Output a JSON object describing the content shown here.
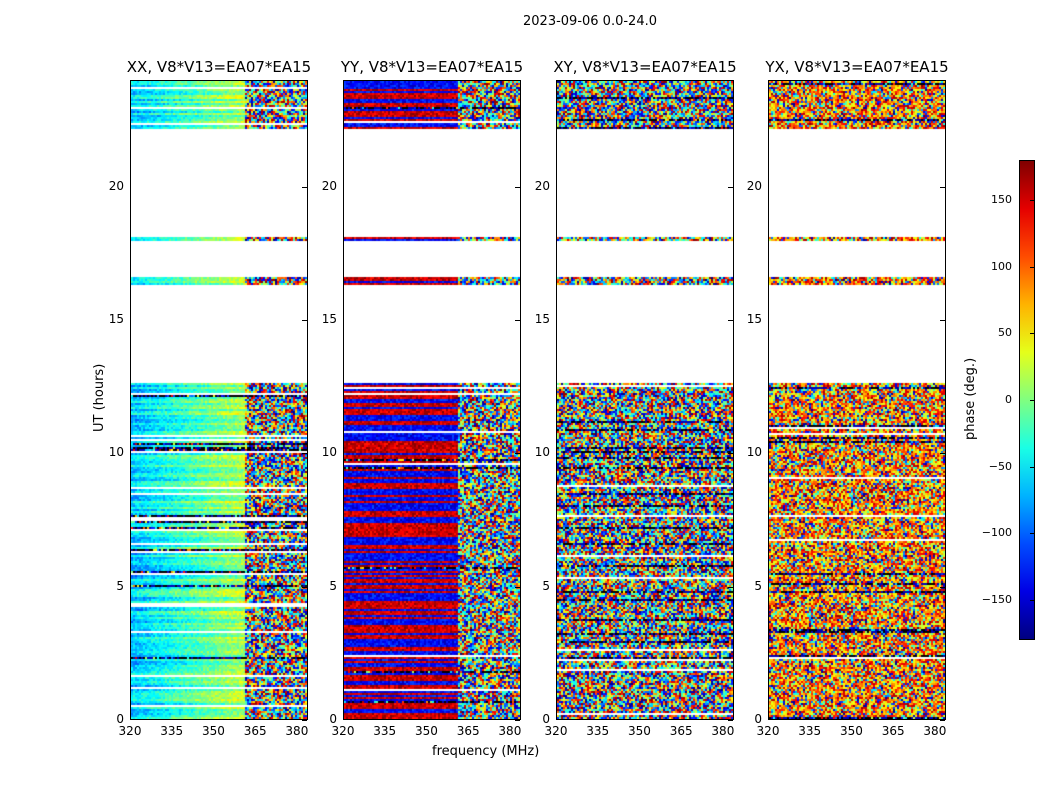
{
  "chart_data": {
    "type": "heatmap",
    "suptitle": "2023-09-06 0.0-24.0",
    "xlabel": "frequency (MHz)",
    "ylabel": "UT (hours)",
    "xlim": [
      320,
      384
    ],
    "ylim": [
      0,
      24
    ],
    "x_ticks": [
      "320",
      "335",
      "350",
      "365",
      "380"
    ],
    "x_tick_values": [
      320,
      335,
      350,
      365,
      380
    ],
    "y_ticks": [
      "0",
      "5",
      "10",
      "15",
      "20"
    ],
    "y_tick_values": [
      0,
      5,
      10,
      15,
      20
    ],
    "colormap": "jet",
    "colorbar": {
      "label": "phase (deg.)",
      "range": [
        -180,
        180
      ],
      "ticks": [
        "150",
        "100",
        "50",
        "0",
        "−50",
        "−100",
        "−150"
      ],
      "tick_values": [
        150,
        100,
        50,
        0,
        -50,
        -100,
        -150
      ]
    },
    "panels": [
      {
        "title": "XX, V8*V13=EA07*EA15",
        "mode": "smooth",
        "break_freq": 361
      },
      {
        "title": "YY, V8*V13=EA07*EA15",
        "mode": "banded",
        "break_freq": 361
      },
      {
        "title": "XY, V8*V13=EA07*EA15",
        "mode": "noise",
        "break_freq": 361
      },
      {
        "title": "YX, V8*V13=EA07*EA15",
        "mode": "noiseWarm",
        "break_freq": 361
      }
    ],
    "data_time_ranges": [
      [
        0,
        12.7
      ],
      [
        16.4,
        16.7
      ],
      [
        18.0,
        18.2
      ],
      [
        22.2,
        24.0
      ]
    ]
  }
}
